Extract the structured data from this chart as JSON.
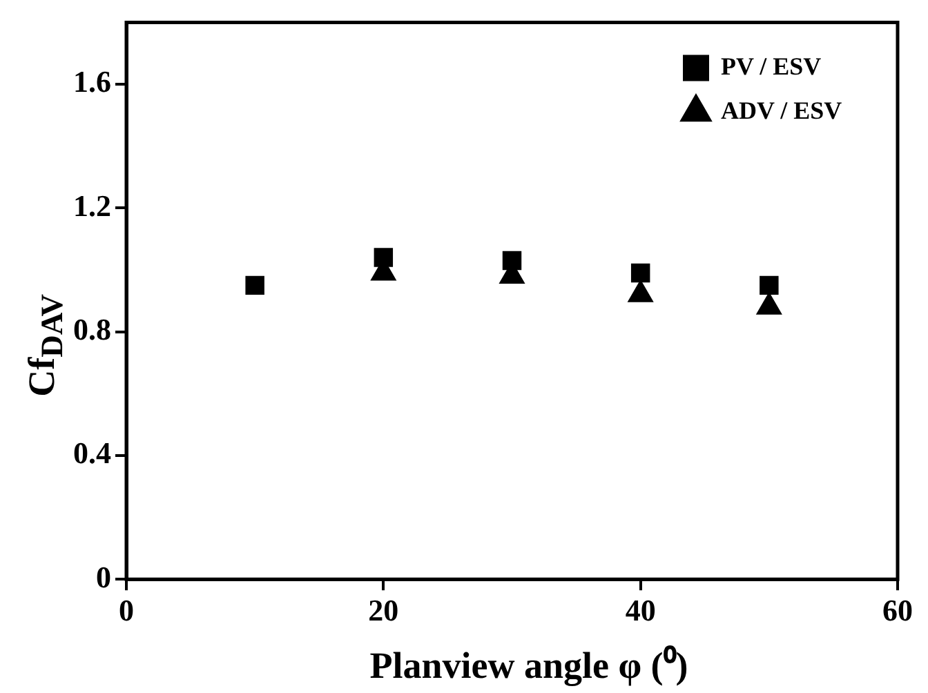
{
  "chart_data": {
    "type": "scatter",
    "xlabel": "Planview angle φ (⁰)",
    "ylabel": "Cf$_{DAV}$",
    "x": [
      10,
      20,
      30,
      40,
      50
    ],
    "series": [
      {
        "name": "PV / ESV",
        "color": "#000000",
        "marker": "square",
        "values": [
          0.95,
          1.04,
          1.03,
          0.99,
          0.95
        ]
      },
      {
        "name": "ADV / ESV",
        "color": "#000000",
        "marker": "triangle",
        "values": [
          null,
          0.99,
          0.98,
          0.92,
          0.88
        ]
      }
    ],
    "xlim": [
      0,
      60
    ],
    "xticks": [
      0,
      20,
      40,
      60
    ],
    "ylim": [
      0,
      1.8
    ],
    "yticks": [
      0,
      0.4,
      0.8,
      1.2,
      1.6
    ],
    "grid": false,
    "legend": "top right"
  }
}
